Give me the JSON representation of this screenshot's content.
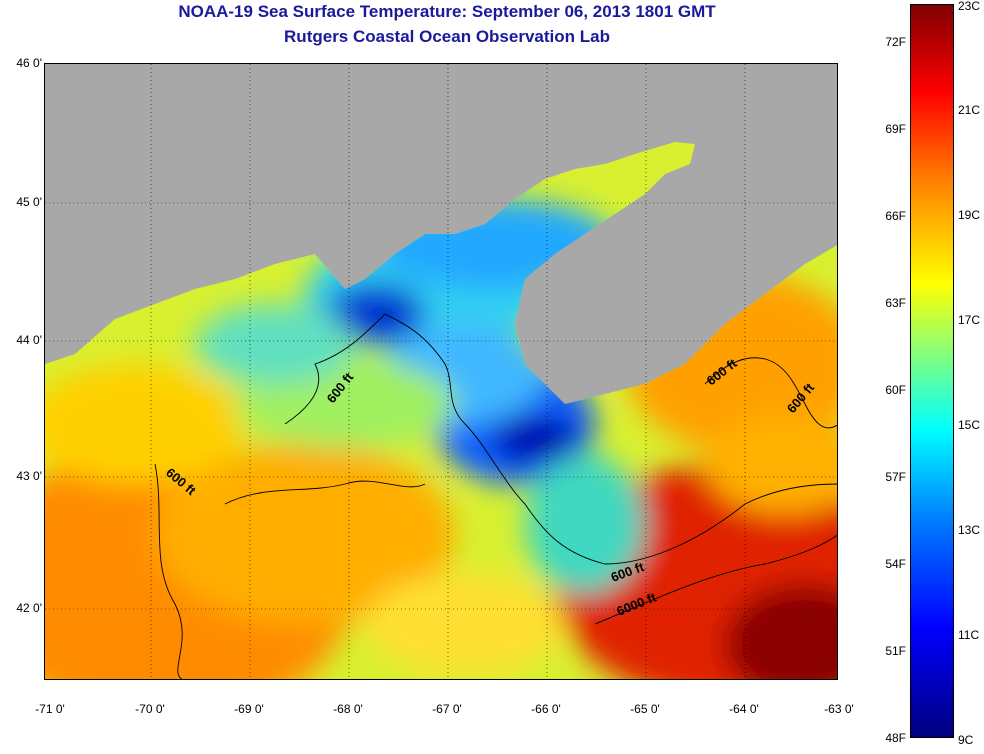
{
  "title": "NOAA-19 Sea Surface Temperature:  September 06, 2013 1801 GMT",
  "subtitle": "Rutgers Coastal Ocean Observation Lab",
  "lat_labels": [
    "46 0'",
    "45 0'",
    "44 0'",
    "43 0'",
    "42 0'"
  ],
  "lon_labels": [
    "-71 0'",
    "-70 0'",
    "-69 0'",
    "-68 0'",
    "-67 0'",
    "-66 0'",
    "-65 0'",
    "-64 0'",
    "-63 0'"
  ],
  "colorbar": {
    "fahrenheit_labels": [
      "72F",
      "69F",
      "66F",
      "63F",
      "60F",
      "57F",
      "54F",
      "51F",
      "48F"
    ],
    "celsius_labels": [
      "23C",
      "21C",
      "19C",
      "17C",
      "15C",
      "13C",
      "11C",
      "9C"
    ],
    "colors": [
      "#00007f",
      "#0000ff",
      "#0080ff",
      "#00ffff",
      "#80ff80",
      "#ffff00",
      "#ff8000",
      "#ff0000",
      "#800000"
    ]
  },
  "contour_labels": [
    "600 ft",
    "600 ft",
    "600 ft",
    "600 ft",
    "600 ft",
    "6000 ft"
  ],
  "colors": {
    "land": "#a8a8a8",
    "title": "#1a1a9c"
  }
}
